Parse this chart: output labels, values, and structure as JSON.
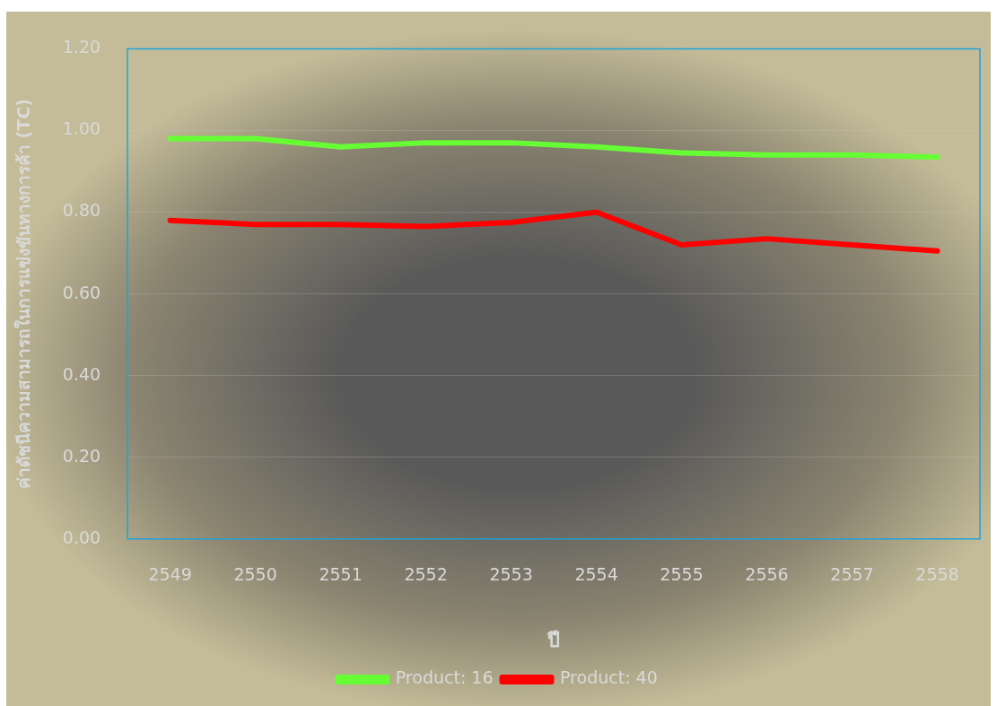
{
  "chart_data": {
    "type": "line",
    "xlabel": "ปี",
    "ylabel": "ค่าดัชนีความสามารถในการแข่งขันทางการค้า (TC)",
    "categories": [
      "2549",
      "2550",
      "2551",
      "2552",
      "2553",
      "2554",
      "2555",
      "2556",
      "2557",
      "2558"
    ],
    "series": [
      {
        "name": "Product: 16",
        "color": "#66ff33",
        "values": [
          0.98,
          0.98,
          0.96,
          0.97,
          0.97,
          0.96,
          0.945,
          0.94,
          0.94,
          0.935
        ]
      },
      {
        "name": "Product: 40",
        "color": "#ff0000",
        "values": [
          0.78,
          0.77,
          0.77,
          0.765,
          0.775,
          0.8,
          0.72,
          0.735,
          0.72,
          0.705
        ]
      }
    ],
    "ylim": [
      0,
      1.2
    ],
    "yticks": [
      {
        "value": 0,
        "label": "0.00"
      },
      {
        "value": 0.2,
        "label": "0.20"
      },
      {
        "value": 0.4,
        "label": "0.40"
      },
      {
        "value": 0.6,
        "label": "0.60"
      },
      {
        "value": 0.8,
        "label": "0.80"
      },
      {
        "value": 1,
        "label": "1.00"
      },
      {
        "value": 1.2,
        "label": "1.20"
      }
    ],
    "grid": "y",
    "legend": "bottom",
    "marker": "none",
    "line_style": "solid"
  }
}
